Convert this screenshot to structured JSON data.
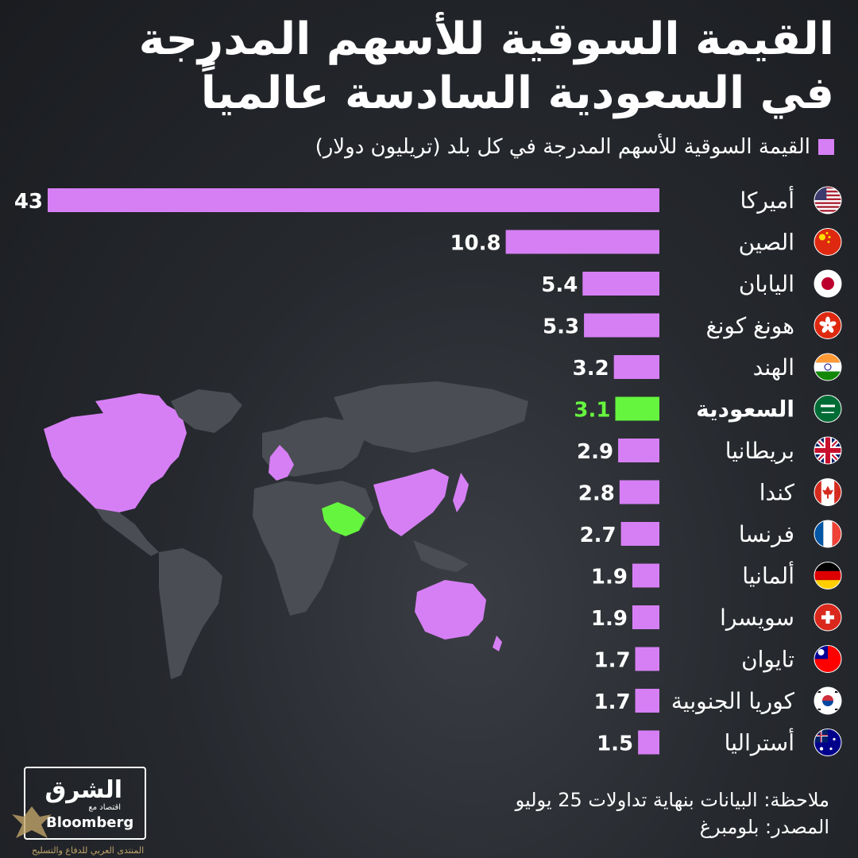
{
  "title_line1": "القيمة السوقية للأسهم المدرجة",
  "title_line2": "في السعودية السادسة عالمياً",
  "note": "ملاحظة: البيانات بنهاية تداولات 25 يوليو",
  "source": "المصدر: بلومبرغ",
  "logo": {
    "name": "الشرق",
    "sub": "اقتصاد مع",
    "partner": "Bloomberg"
  },
  "footer_small": "المنتدى العربي للدفاع والتسليح",
  "colors": {
    "bar": "#d67ff5",
    "highlight": "#66f53e",
    "map_land": "#4a4d53",
    "map_highlight": "#d67ff5",
    "text": "#ffffff"
  },
  "chart_data": {
    "type": "bar",
    "orientation": "horizontal",
    "legend": "القيمة السوقية للأسهم المدرجة في كل بلد (تريليون دولار)",
    "legend_placement": "top-right",
    "xlim": [
      0,
      43
    ],
    "highlight_category": "السعودية",
    "categories": [
      "أميركا",
      "الصين",
      "اليابان",
      "هونغ كونغ",
      "الهند",
      "السعودية",
      "بريطانيا",
      "كندا",
      "فرنسا",
      "ألمانيا",
      "سويسرا",
      "تايوان",
      "كوريا الجنوبية",
      "أستراليا"
    ],
    "value_labels": [
      "43",
      "10.8",
      "5.4",
      "5.3",
      "3.2",
      "3.1",
      "2.9",
      "2.8",
      "2.7",
      "1.9",
      "1.9",
      "1.7",
      "1.7",
      "1.5"
    ],
    "values": [
      43,
      10.8,
      5.4,
      5.3,
      3.2,
      3.1,
      2.9,
      2.8,
      2.7,
      1.9,
      1.9,
      1.7,
      1.7,
      1.5
    ],
    "flags": [
      "usa-flag-icon",
      "china-flag-icon",
      "japan-flag-icon",
      "hongkong-flag-icon",
      "india-flag-icon",
      "saudi-flag-icon",
      "uk-flag-icon",
      "canada-flag-icon",
      "france-flag-icon",
      "germany-flag-icon",
      "switzerland-flag-icon",
      "taiwan-flag-icon",
      "korea-flag-icon",
      "australia-flag-icon"
    ]
  }
}
